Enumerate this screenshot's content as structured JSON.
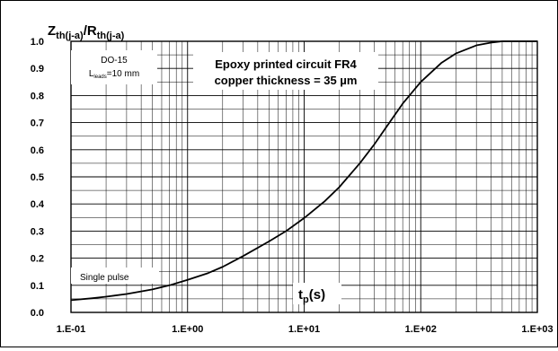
{
  "chart_data": {
    "type": "line",
    "ylabel_main": "Z",
    "ylabel_main_sub": "th(j-a)",
    "ylabel_sep": "/R",
    "ylabel_den_sub": "th(j-a)",
    "xlabel_main": "t",
    "xlabel_sub": "p",
    "xlabel_unit": "(s)",
    "x_scale": "log",
    "xlim": [
      0.1,
      1000
    ],
    "ylim": [
      0.0,
      1.0
    ],
    "grid": true,
    "x_tick_labels": [
      "1.E-01",
      "1.E+00",
      "1.E+01",
      "1.E+02",
      "1.E+03"
    ],
    "y_tick_labels": [
      "0.0",
      "0.1",
      "0.2",
      "0.3",
      "0.4",
      "0.5",
      "0.6",
      "0.7",
      "0.8",
      "0.9",
      "1.0"
    ],
    "annotations": {
      "package": "DO-15",
      "lead_length_prefix": "L",
      "lead_length_sub": "leads",
      "lead_length_value": "=10 mm",
      "board_line1": "Epoxy printed circuit FR4",
      "board_line2": "copper thickness = 35 µm",
      "pulse": "Single pulse"
    },
    "series": [
      {
        "x": [
          0.1,
          0.15,
          0.2,
          0.3,
          0.5,
          0.7,
          1.0,
          1.5,
          2.0,
          3.0,
          5.0,
          7.0,
          10,
          15,
          20,
          30,
          40,
          50,
          70,
          100,
          150,
          200,
          300,
          400,
          500,
          600,
          700,
          1000
        ],
        "y": [
          0.045,
          0.052,
          0.058,
          0.068,
          0.085,
          0.1,
          0.12,
          0.145,
          0.168,
          0.208,
          0.262,
          0.3,
          0.348,
          0.41,
          0.462,
          0.55,
          0.62,
          0.68,
          0.77,
          0.85,
          0.92,
          0.955,
          0.985,
          0.995,
          1.0,
          1.0,
          1.0,
          1.0
        ]
      }
    ]
  }
}
